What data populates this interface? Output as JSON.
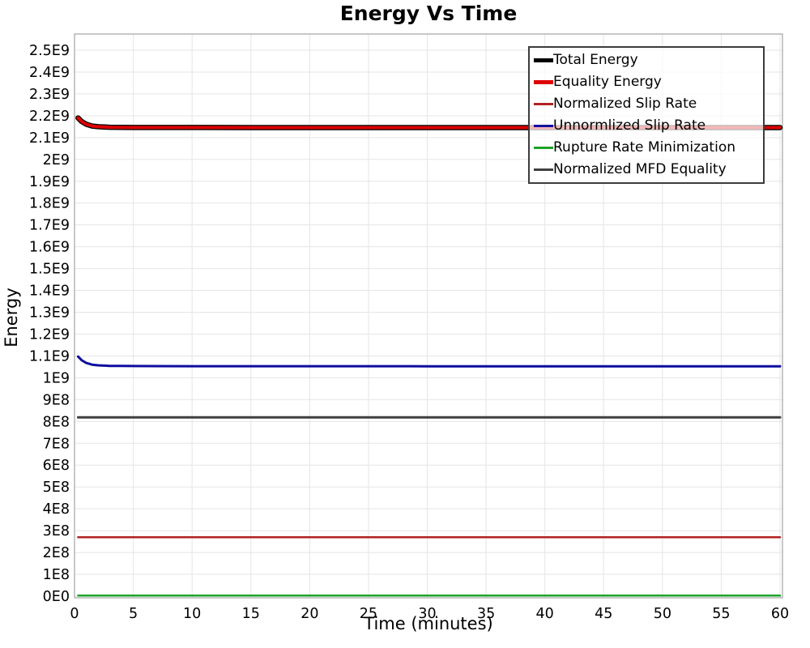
{
  "chart_data": {
    "type": "line",
    "title": "Energy Vs Time",
    "xlabel": "Time (minutes)",
    "ylabel": "Energy",
    "xlim": [
      0,
      60.2
    ],
    "ylim": [
      0,
      2580000000
    ],
    "grid": true,
    "legend_position": "top-right",
    "x_ticks": [
      {
        "value": 0,
        "label": "0"
      },
      {
        "value": 5,
        "label": "5"
      },
      {
        "value": 10,
        "label": "10"
      },
      {
        "value": 15,
        "label": "15"
      },
      {
        "value": 20,
        "label": "20"
      },
      {
        "value": 25,
        "label": "25"
      },
      {
        "value": 30,
        "label": "30"
      },
      {
        "value": 35,
        "label": "35"
      },
      {
        "value": 40,
        "label": "40"
      },
      {
        "value": 45,
        "label": "45"
      },
      {
        "value": 50,
        "label": "50"
      },
      {
        "value": 55,
        "label": "55"
      },
      {
        "value": 60,
        "label": "60"
      }
    ],
    "y_ticks": [
      {
        "value": 0.0,
        "label": "0E0"
      },
      {
        "value": 0.1,
        "label": "1E8"
      },
      {
        "value": 0.2,
        "label": "2E8"
      },
      {
        "value": 0.3,
        "label": "3E8"
      },
      {
        "value": 0.4,
        "label": "4E8"
      },
      {
        "value": 0.5,
        "label": "5E8"
      },
      {
        "value": 0.6,
        "label": "6E8"
      },
      {
        "value": 0.7,
        "label": "7E8"
      },
      {
        "value": 0.8,
        "label": "8E8"
      },
      {
        "value": 0.9,
        "label": "9E8"
      },
      {
        "value": 1.0,
        "label": "1E9"
      },
      {
        "value": 1.1,
        "label": "1.1E9"
      },
      {
        "value": 1.2,
        "label": "1.2E9"
      },
      {
        "value": 1.3,
        "label": "1.3E9"
      },
      {
        "value": 1.4,
        "label": "1.4E9"
      },
      {
        "value": 1.5,
        "label": "1.5E9"
      },
      {
        "value": 1.6,
        "label": "1.6E9"
      },
      {
        "value": 1.7,
        "label": "1.7E9"
      },
      {
        "value": 1.8,
        "label": "1.8E9"
      },
      {
        "value": 1.9,
        "label": "1.9E9"
      },
      {
        "value": 2.0,
        "label": "2E9"
      },
      {
        "value": 2.1,
        "label": "2.1E9"
      },
      {
        "value": 2.2,
        "label": "2.2E9"
      },
      {
        "value": 2.3,
        "label": "2.3E9"
      },
      {
        "value": 2.4,
        "label": "2.4E9"
      },
      {
        "value": 2.5,
        "label": "2.5E9"
      }
    ],
    "values_unit": "1E9",
    "x": [
      0.3,
      0.6,
      1,
      1.5,
      2,
      3,
      4,
      5,
      7,
      10,
      15,
      20,
      30,
      40,
      50,
      60
    ],
    "series": [
      {
        "name": "Total Energy",
        "color": "#000000",
        "line_width": 6.5,
        "legend_swatch_height": 5,
        "values": [
          2.19,
          2.174,
          2.161,
          2.153,
          2.15,
          2.1472,
          2.1466,
          2.1463,
          2.1461,
          2.146,
          2.1459,
          2.1459,
          2.1458,
          2.1458,
          2.1458,
          2.1458
        ]
      },
      {
        "name": "Equality Energy",
        "color": "#dd0000",
        "line_width": 4,
        "legend_swatch_height": 5,
        "values": [
          2.19,
          2.174,
          2.161,
          2.153,
          2.15,
          2.1472,
          2.1466,
          2.1463,
          2.1461,
          2.146,
          2.1459,
          2.1459,
          2.1458,
          2.1458,
          2.1458,
          2.1458
        ]
      },
      {
        "name": "Normalized Slip Rate",
        "color": "#b22222",
        "line_width": 2.5,
        "legend_swatch_height": 3,
        "values": [
          0.27,
          0.27,
          0.27,
          0.27,
          0.27,
          0.27,
          0.27,
          0.27,
          0.27,
          0.27,
          0.27,
          0.27,
          0.27,
          0.27,
          0.27,
          0.27
        ]
      },
      {
        "name": "Unnormlized Slip Rate",
        "color": "#0d0da0",
        "line_width": 3,
        "legend_swatch_height": 3,
        "values": [
          1.097,
          1.081,
          1.068,
          1.06,
          1.057,
          1.0547,
          1.0541,
          1.0537,
          1.0534,
          1.0532,
          1.053,
          1.0529,
          1.0528,
          1.0528,
          1.0527,
          1.0527
        ]
      },
      {
        "name": "Rupture Rate Minimization",
        "color": "#1ea32b",
        "line_width": 2.5,
        "legend_swatch_height": 3,
        "values": [
          0.003,
          0.003,
          0.003,
          0.003,
          0.003,
          0.003,
          0.003,
          0.003,
          0.003,
          0.003,
          0.003,
          0.003,
          0.003,
          0.003,
          0.003,
          0.003
        ]
      },
      {
        "name": "Normalized MFD Equality",
        "color": "#3f3f3f",
        "line_width": 3,
        "legend_swatch_height": 3,
        "values": [
          0.819,
          0.819,
          0.819,
          0.819,
          0.819,
          0.819,
          0.819,
          0.819,
          0.819,
          0.819,
          0.819,
          0.819,
          0.819,
          0.819,
          0.819,
          0.819
        ]
      }
    ],
    "style": {
      "grid_color": "#e5e5e5",
      "plot_border_color": "#ababab",
      "legend_border_color": "#3c3c3c",
      "text_color": "#000000",
      "background_color": "#ffffff"
    }
  }
}
